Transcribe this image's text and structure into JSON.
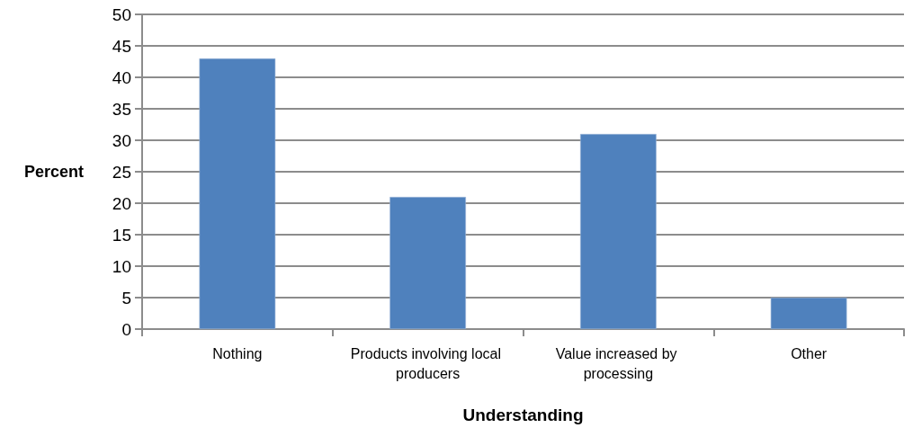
{
  "chart_data": {
    "type": "bar",
    "xlabel": "Understanding",
    "ylabel": "Percent",
    "categories": [
      "Nothing",
      "Products involving local producers",
      "Value increased by processing",
      "Other"
    ],
    "values": [
      43,
      21,
      31,
      5
    ],
    "color": "#4f81bd",
    "ylim": [
      0,
      50
    ],
    "yticks": [
      0,
      5,
      10,
      15,
      20,
      25,
      30,
      35,
      40,
      45,
      50
    ],
    "grid": "y"
  }
}
